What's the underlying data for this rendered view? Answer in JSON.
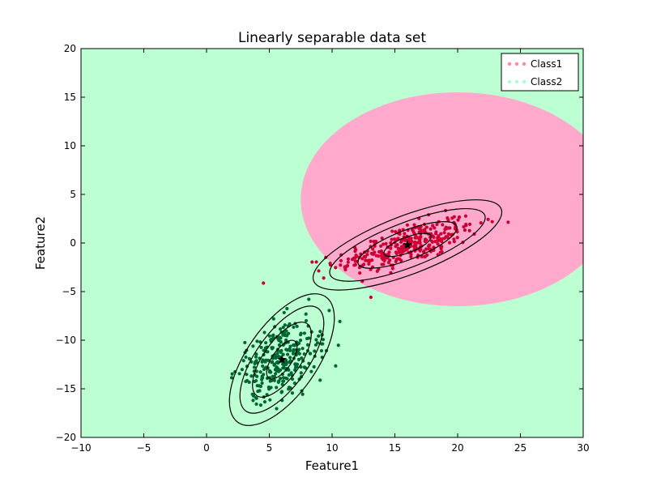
{
  "chart_data": {
    "type": "scatter",
    "title": "Linearly separable data set",
    "xlabel": "Feature1",
    "ylabel": "Feature2",
    "xlim": [
      -10,
      30
    ],
    "ylim": [
      -20,
      20
    ],
    "xticks": [
      -10,
      -5,
      0,
      5,
      10,
      15,
      20,
      25,
      30
    ],
    "yticks": [
      -20,
      -15,
      -10,
      -5,
      0,
      5,
      10,
      15,
      20
    ],
    "xtick_labels": [
      "−10",
      "−5",
      "0",
      "5",
      "10",
      "15",
      "20",
      "25",
      "30"
    ],
    "ytick_labels": [
      "−20",
      "−15",
      "−10",
      "−5",
      "0",
      "5",
      "10",
      "15",
      "20"
    ],
    "grid": false,
    "legend_position": "top-right",
    "background_region_color": "#bbffd3",
    "decision_region": {
      "color": "#ffaacc",
      "center": [
        20.0,
        4.5
      ],
      "radii": [
        12.5,
        11.0
      ]
    },
    "legend": [
      {
        "label": "Class1",
        "color": "#ff88aa"
      },
      {
        "label": "Class2",
        "color": "#aaffcc"
      }
    ],
    "series": [
      {
        "name": "Class1",
        "color": "#cc0033",
        "mean": [
          16.0,
          -0.2
        ],
        "contour_ellipses": [
          {
            "rx": 2.0,
            "ry": 0.8,
            "angle": 21
          },
          {
            "rx": 4.2,
            "ry": 1.5,
            "angle": 21
          },
          {
            "rx": 6.6,
            "ry": 2.3,
            "angle": 21
          },
          {
            "rx": 8.0,
            "ry": 3.0,
            "angle": 21
          }
        ]
      },
      {
        "name": "Class2",
        "color": "#006633",
        "mean": [
          6.0,
          -12.0
        ],
        "contour_ellipses": [
          {
            "rx": 1.8,
            "ry": 1.0,
            "angle": 55
          },
          {
            "rx": 3.5,
            "ry": 1.9,
            "angle": 55
          },
          {
            "rx": 5.0,
            "ry": 2.7,
            "angle": 55
          },
          {
            "rx": 6.1,
            "ry": 3.6,
            "angle": 55
          }
        ]
      }
    ]
  }
}
